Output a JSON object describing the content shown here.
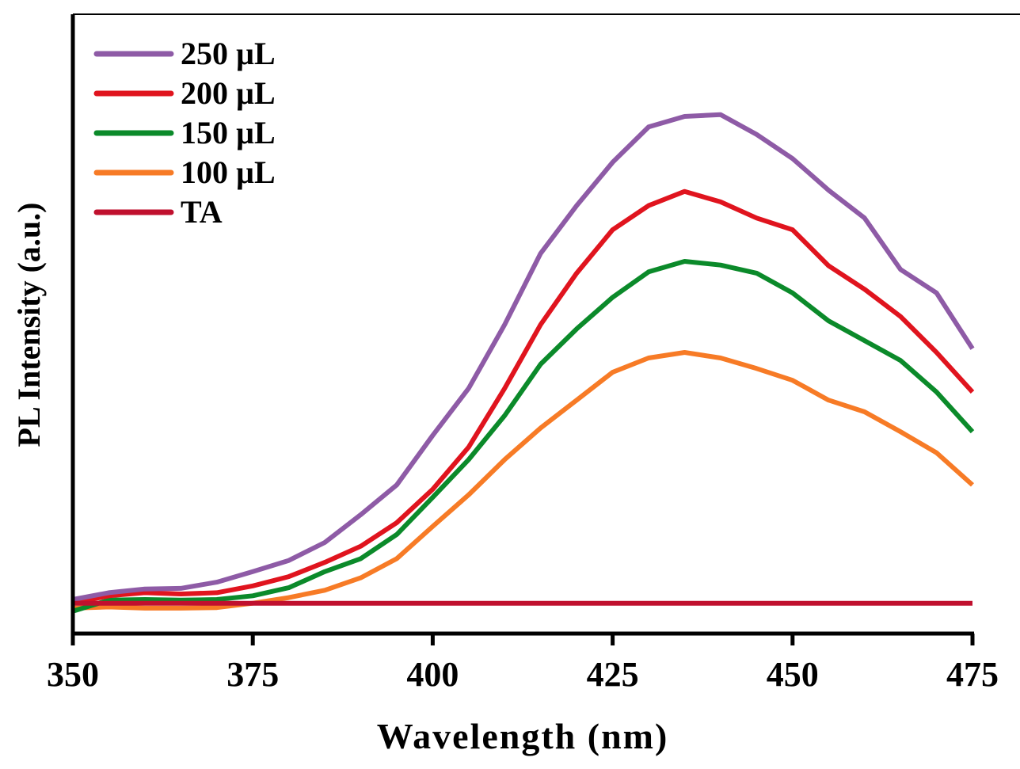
{
  "chart_data": {
    "type": "line",
    "title": "",
    "xlabel": "Wavelength (nm)",
    "ylabel": "PL Intensity (a.u.)",
    "xlim": [
      350,
      475
    ],
    "ylim": [
      0,
      100
    ],
    "xticks": [
      350,
      375,
      400,
      425,
      450,
      475
    ],
    "yticks": [],
    "grid": false,
    "legend_position": "top-left",
    "x": [
      350,
      355,
      360,
      365,
      370,
      375,
      380,
      385,
      390,
      395,
      400,
      405,
      410,
      415,
      420,
      425,
      430,
      435,
      440,
      445,
      450,
      455,
      460,
      465,
      470,
      475
    ],
    "series": [
      {
        "name": "250 µL",
        "color": "#8e5ba6",
        "values": [
          5.5,
          6.6,
          7.2,
          7.3,
          8.3,
          10.0,
          11.8,
          14.7,
          19.2,
          24.0,
          32.0,
          39.6,
          49.9,
          61.4,
          69.1,
          76.1,
          81.8,
          83.5,
          83.8,
          80.6,
          76.7,
          71.6,
          67.1,
          58.8,
          55.0,
          46.0
        ]
      },
      {
        "name": "200 µL",
        "color": "#e0141e",
        "values": [
          4.9,
          6.1,
          6.6,
          6.4,
          6.6,
          7.7,
          9.2,
          11.5,
          14.1,
          17.9,
          23.3,
          30.1,
          39.6,
          49.9,
          58.2,
          65.2,
          69.1,
          71.4,
          69.7,
          67.1,
          65.2,
          59.4,
          55.6,
          51.2,
          45.4,
          39.0
        ]
      },
      {
        "name": "150 µL",
        "color": "#0b8a2a",
        "values": [
          3.6,
          5.4,
          5.5,
          5.4,
          5.5,
          6.1,
          7.4,
          10.0,
          12.1,
          16.0,
          22.0,
          28.1,
          35.2,
          43.5,
          49.2,
          54.3,
          58.4,
          60.1,
          59.5,
          58.2,
          55.0,
          50.5,
          47.3,
          44.1,
          39.0,
          32.6
        ]
      },
      {
        "name": "100 µL",
        "color": "#f77b26",
        "values": [
          4.1,
          4.3,
          4.1,
          4.1,
          4.2,
          4.9,
          5.8,
          7.0,
          9.0,
          12.1,
          17.3,
          22.4,
          28.1,
          33.2,
          37.7,
          42.2,
          44.5,
          45.4,
          44.5,
          42.8,
          40.9,
          37.7,
          35.8,
          32.6,
          29.2,
          24.0
        ]
      },
      {
        "name": "TA",
        "color": "#c0102e",
        "values": [
          4.9,
          4.9,
          4.9,
          4.9,
          4.9,
          4.9,
          4.9,
          4.9,
          4.9,
          4.9,
          4.9,
          4.9,
          4.9,
          4.9,
          4.9,
          4.9,
          4.9,
          4.9,
          4.9,
          4.9,
          4.9,
          4.9,
          4.9,
          4.9,
          4.9,
          4.9
        ]
      }
    ]
  }
}
